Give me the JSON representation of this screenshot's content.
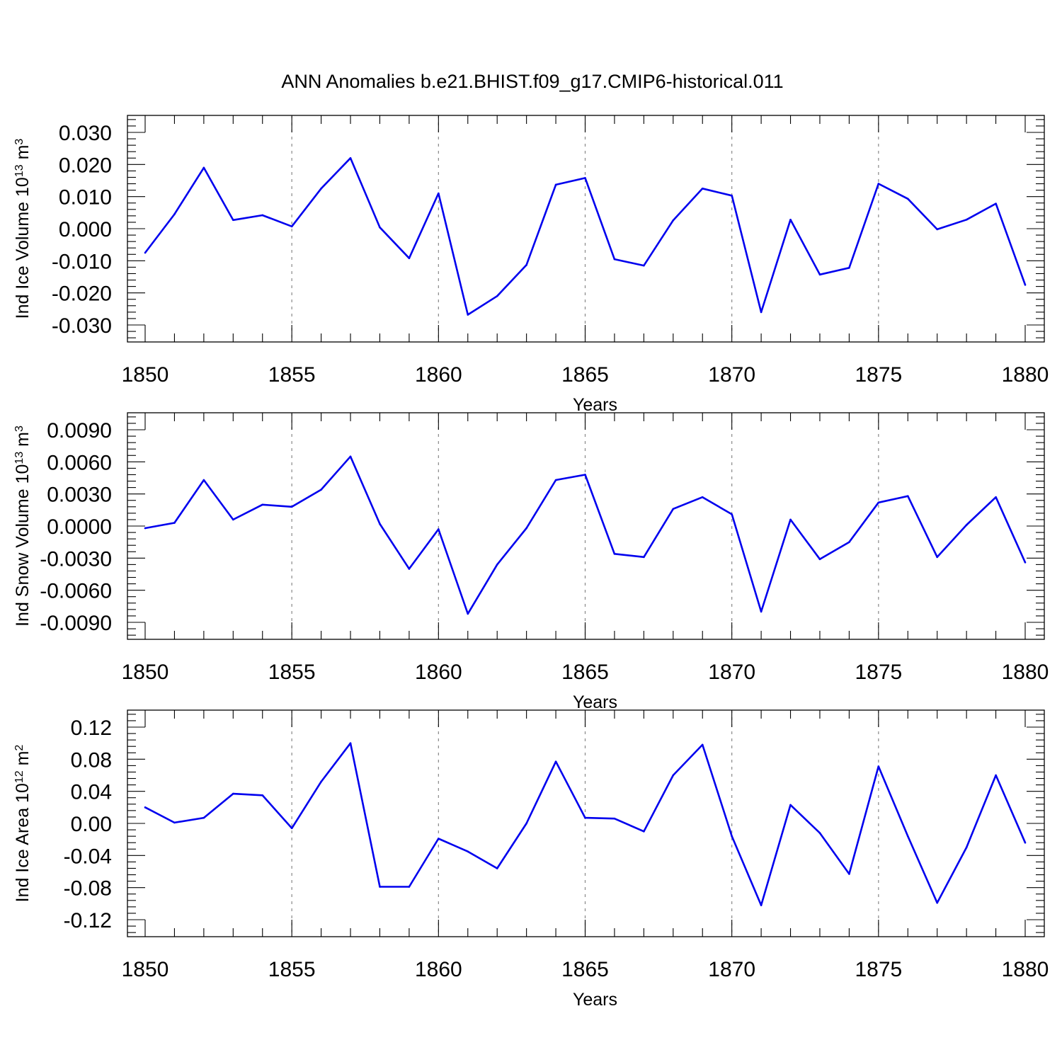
{
  "title": "ANN Anomalies b.e21.BHIST.f09_g17.CMIP6-historical.011",
  "colors": {
    "series": "#0000ee",
    "grid": "#888888"
  },
  "chart_data": [
    {
      "type": "line",
      "xlabel": "Years",
      "ylabel": {
        "text": "Ind Ice Volume 10",
        "sup": "13",
        "unit": " m",
        "unit_sup": "3"
      },
      "xlim": [
        1850,
        1880
      ],
      "ylim": [
        -0.03,
        0.03
      ],
      "xticks": [
        1850,
        1855,
        1860,
        1865,
        1870,
        1875,
        1880
      ],
      "yticks": [
        -0.03,
        -0.02,
        -0.01,
        0.0,
        0.01,
        0.02,
        0.03
      ],
      "ytick_labels": [
        "-0.030",
        "-0.020",
        "-0.010",
        "0.000",
        "0.010",
        "0.020",
        "0.030"
      ],
      "grid": "vertical-dashed",
      "x": [
        1850,
        1851,
        1852,
        1853,
        1854,
        1855,
        1856,
        1857,
        1858,
        1859,
        1860,
        1861,
        1862,
        1863,
        1864,
        1865,
        1866,
        1867,
        1868,
        1869,
        1870,
        1871,
        1872,
        1873,
        1874,
        1875,
        1876,
        1877,
        1878,
        1879,
        1880
      ],
      "y": [
        -0.0075,
        0.0045,
        0.019,
        0.0027,
        0.0042,
        0.0007,
        0.0125,
        0.022,
        0.0004,
        -0.0092,
        0.011,
        -0.0268,
        -0.021,
        -0.0113,
        0.0137,
        0.0158,
        -0.0095,
        -0.0115,
        0.0026,
        0.0125,
        0.0103,
        -0.026,
        0.0028,
        -0.0143,
        -0.0122,
        0.014,
        0.0093,
        -0.0002,
        0.0028,
        0.0078,
        -0.0175
      ]
    },
    {
      "type": "line",
      "xlabel": "Years",
      "ylabel": {
        "text": "Ind Snow Volume 10",
        "sup": "13",
        "unit": " m",
        "unit_sup": "3"
      },
      "xlim": [
        1850,
        1880
      ],
      "ylim": [
        -0.009,
        0.009
      ],
      "xticks": [
        1850,
        1855,
        1860,
        1865,
        1870,
        1875,
        1880
      ],
      "yticks": [
        -0.009,
        -0.006,
        -0.003,
        0.0,
        0.003,
        0.006,
        0.009
      ],
      "ytick_labels": [
        "-0.0090",
        "-0.0060",
        "-0.0030",
        "0.0000",
        "0.0030",
        "0.0060",
        "0.0090"
      ],
      "grid": "vertical-dashed",
      "x": [
        1850,
        1851,
        1852,
        1853,
        1854,
        1855,
        1856,
        1857,
        1858,
        1859,
        1860,
        1861,
        1862,
        1863,
        1864,
        1865,
        1866,
        1867,
        1868,
        1869,
        1870,
        1871,
        1872,
        1873,
        1874,
        1875,
        1876,
        1877,
        1878,
        1879,
        1880
      ],
      "y": [
        -0.0002,
        0.0003,
        0.0043,
        0.0006,
        0.002,
        0.0018,
        0.0034,
        0.0065,
        0.0002,
        -0.004,
        -0.0003,
        -0.0082,
        -0.0036,
        -0.0002,
        0.0043,
        0.0048,
        -0.0026,
        -0.0029,
        0.0016,
        0.0027,
        0.0011,
        -0.008,
        0.0006,
        -0.0031,
        -0.0015,
        0.0022,
        0.0028,
        -0.0029,
        0.0001,
        0.0027,
        -0.0034
      ]
    },
    {
      "type": "line",
      "xlabel": "Years",
      "ylabel": {
        "text": "Ind Ice Area 10",
        "sup": "12",
        "unit": " m",
        "unit_sup": "2"
      },
      "xlim": [
        1850,
        1880
      ],
      "ylim": [
        -0.12,
        0.12
      ],
      "xticks": [
        1850,
        1855,
        1860,
        1865,
        1870,
        1875,
        1880
      ],
      "yticks": [
        -0.12,
        -0.08,
        -0.04,
        0.0,
        0.04,
        0.08,
        0.12
      ],
      "ytick_labels": [
        "-0.12",
        "-0.08",
        "-0.04",
        "0.00",
        "0.04",
        "0.08",
        "0.12"
      ],
      "grid": "vertical-dashed",
      "x": [
        1850,
        1851,
        1852,
        1853,
        1854,
        1855,
        1856,
        1857,
        1858,
        1859,
        1860,
        1861,
        1862,
        1863,
        1864,
        1865,
        1866,
        1867,
        1868,
        1869,
        1870,
        1871,
        1872,
        1873,
        1874,
        1875,
        1876,
        1877,
        1878,
        1879,
        1880
      ],
      "y": [
        0.02,
        0.001,
        0.007,
        0.037,
        0.035,
        -0.006,
        0.052,
        0.1,
        -0.079,
        -0.079,
        -0.019,
        -0.035,
        -0.056,
        0.0,
        0.077,
        0.007,
        0.006,
        -0.01,
        0.06,
        0.098,
        -0.016,
        -0.102,
        0.023,
        -0.012,
        -0.063,
        0.071,
        -0.016,
        -0.099,
        -0.03,
        0.06,
        -0.024
      ]
    }
  ]
}
